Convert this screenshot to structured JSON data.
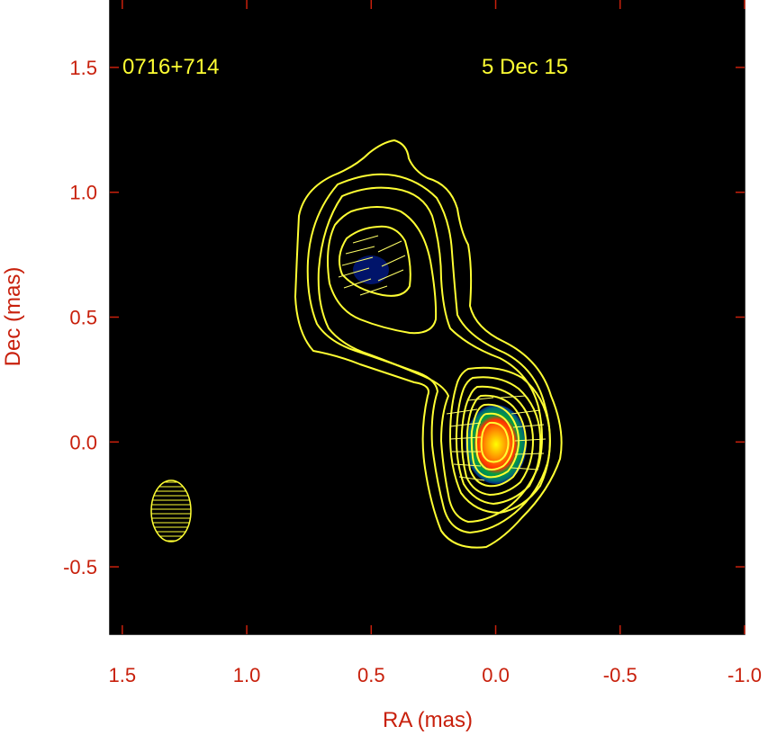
{
  "chart_data": {
    "type": "heatmap",
    "title": "",
    "xlabel": "RA (mas)",
    "ylabel": "Dec (mas)",
    "xlim": [
      1.55,
      -1.0
    ],
    "ylim": [
      -0.77,
      1.77
    ],
    "x_reversed": true,
    "x_ticks": [
      1.5,
      1.0,
      0.5,
      0.0,
      -0.5,
      -1.0
    ],
    "x_tick_labels": [
      "1.5",
      "1.0",
      "0.5",
      "0.0",
      "-0.5",
      "-1.0"
    ],
    "y_ticks": [
      1.5,
      1.0,
      0.5,
      0.0,
      -0.5
    ],
    "y_tick_labels": [
      "1.5",
      "1.0",
      "0.5",
      "0.0",
      "-0.5"
    ],
    "annotations": {
      "source": "0716+714",
      "epoch": "5 Dec 15"
    },
    "background_color": "#000000",
    "contour_color": "#ffff33",
    "axis_color": "#c8200c",
    "core": {
      "ra": 0.0,
      "dec": 0.0
    },
    "jet_knot": {
      "ra": 0.5,
      "dec": 0.7
    },
    "beam": {
      "ra": 1.3,
      "dec": -0.27,
      "major_mas": 0.22,
      "minor_mas": 0.16
    },
    "colormap": [
      "#ffffff",
      "#ffff00",
      "#ff4000",
      "#00b040",
      "#0020a0"
    ]
  }
}
